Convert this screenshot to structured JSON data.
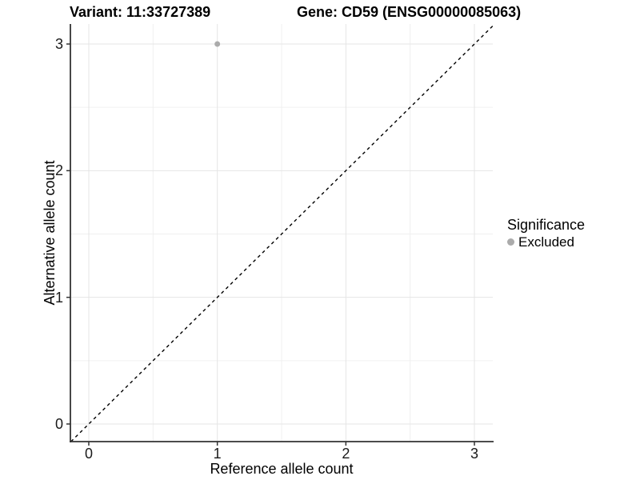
{
  "chart_data": {
    "type": "scatter",
    "title_left": "Variant: 11:33727389",
    "title_right": "Gene: CD59 (ENSG00000085063)",
    "xlabel": "Reference allele count",
    "ylabel": "Alternative allele count",
    "xticks": [
      0,
      1,
      2,
      3
    ],
    "yticks": [
      0,
      1,
      2,
      3
    ],
    "xlim": [
      -0.143,
      3.143
    ],
    "ylim": [
      -0.139,
      3.158
    ],
    "grid": "major and minor gridlines, light gray, white panel background",
    "legend_position": "right",
    "series": [
      {
        "name": "Excluded",
        "color": "#ababab",
        "points": [
          {
            "x": 1,
            "y": 3
          }
        ]
      }
    ],
    "reference_line": {
      "kind": "identity y = x",
      "style": "dashed",
      "color": "#000000"
    },
    "legend": {
      "title": "Significance",
      "entries": [
        {
          "label": "Excluded",
          "color": "#ababab"
        }
      ]
    },
    "colors": {
      "grid_major": "#e5e5e5",
      "grid_minor": "#f0f0f0",
      "axis_line": "#333333",
      "tick_mark": "#333333",
      "text": "#000000"
    }
  }
}
